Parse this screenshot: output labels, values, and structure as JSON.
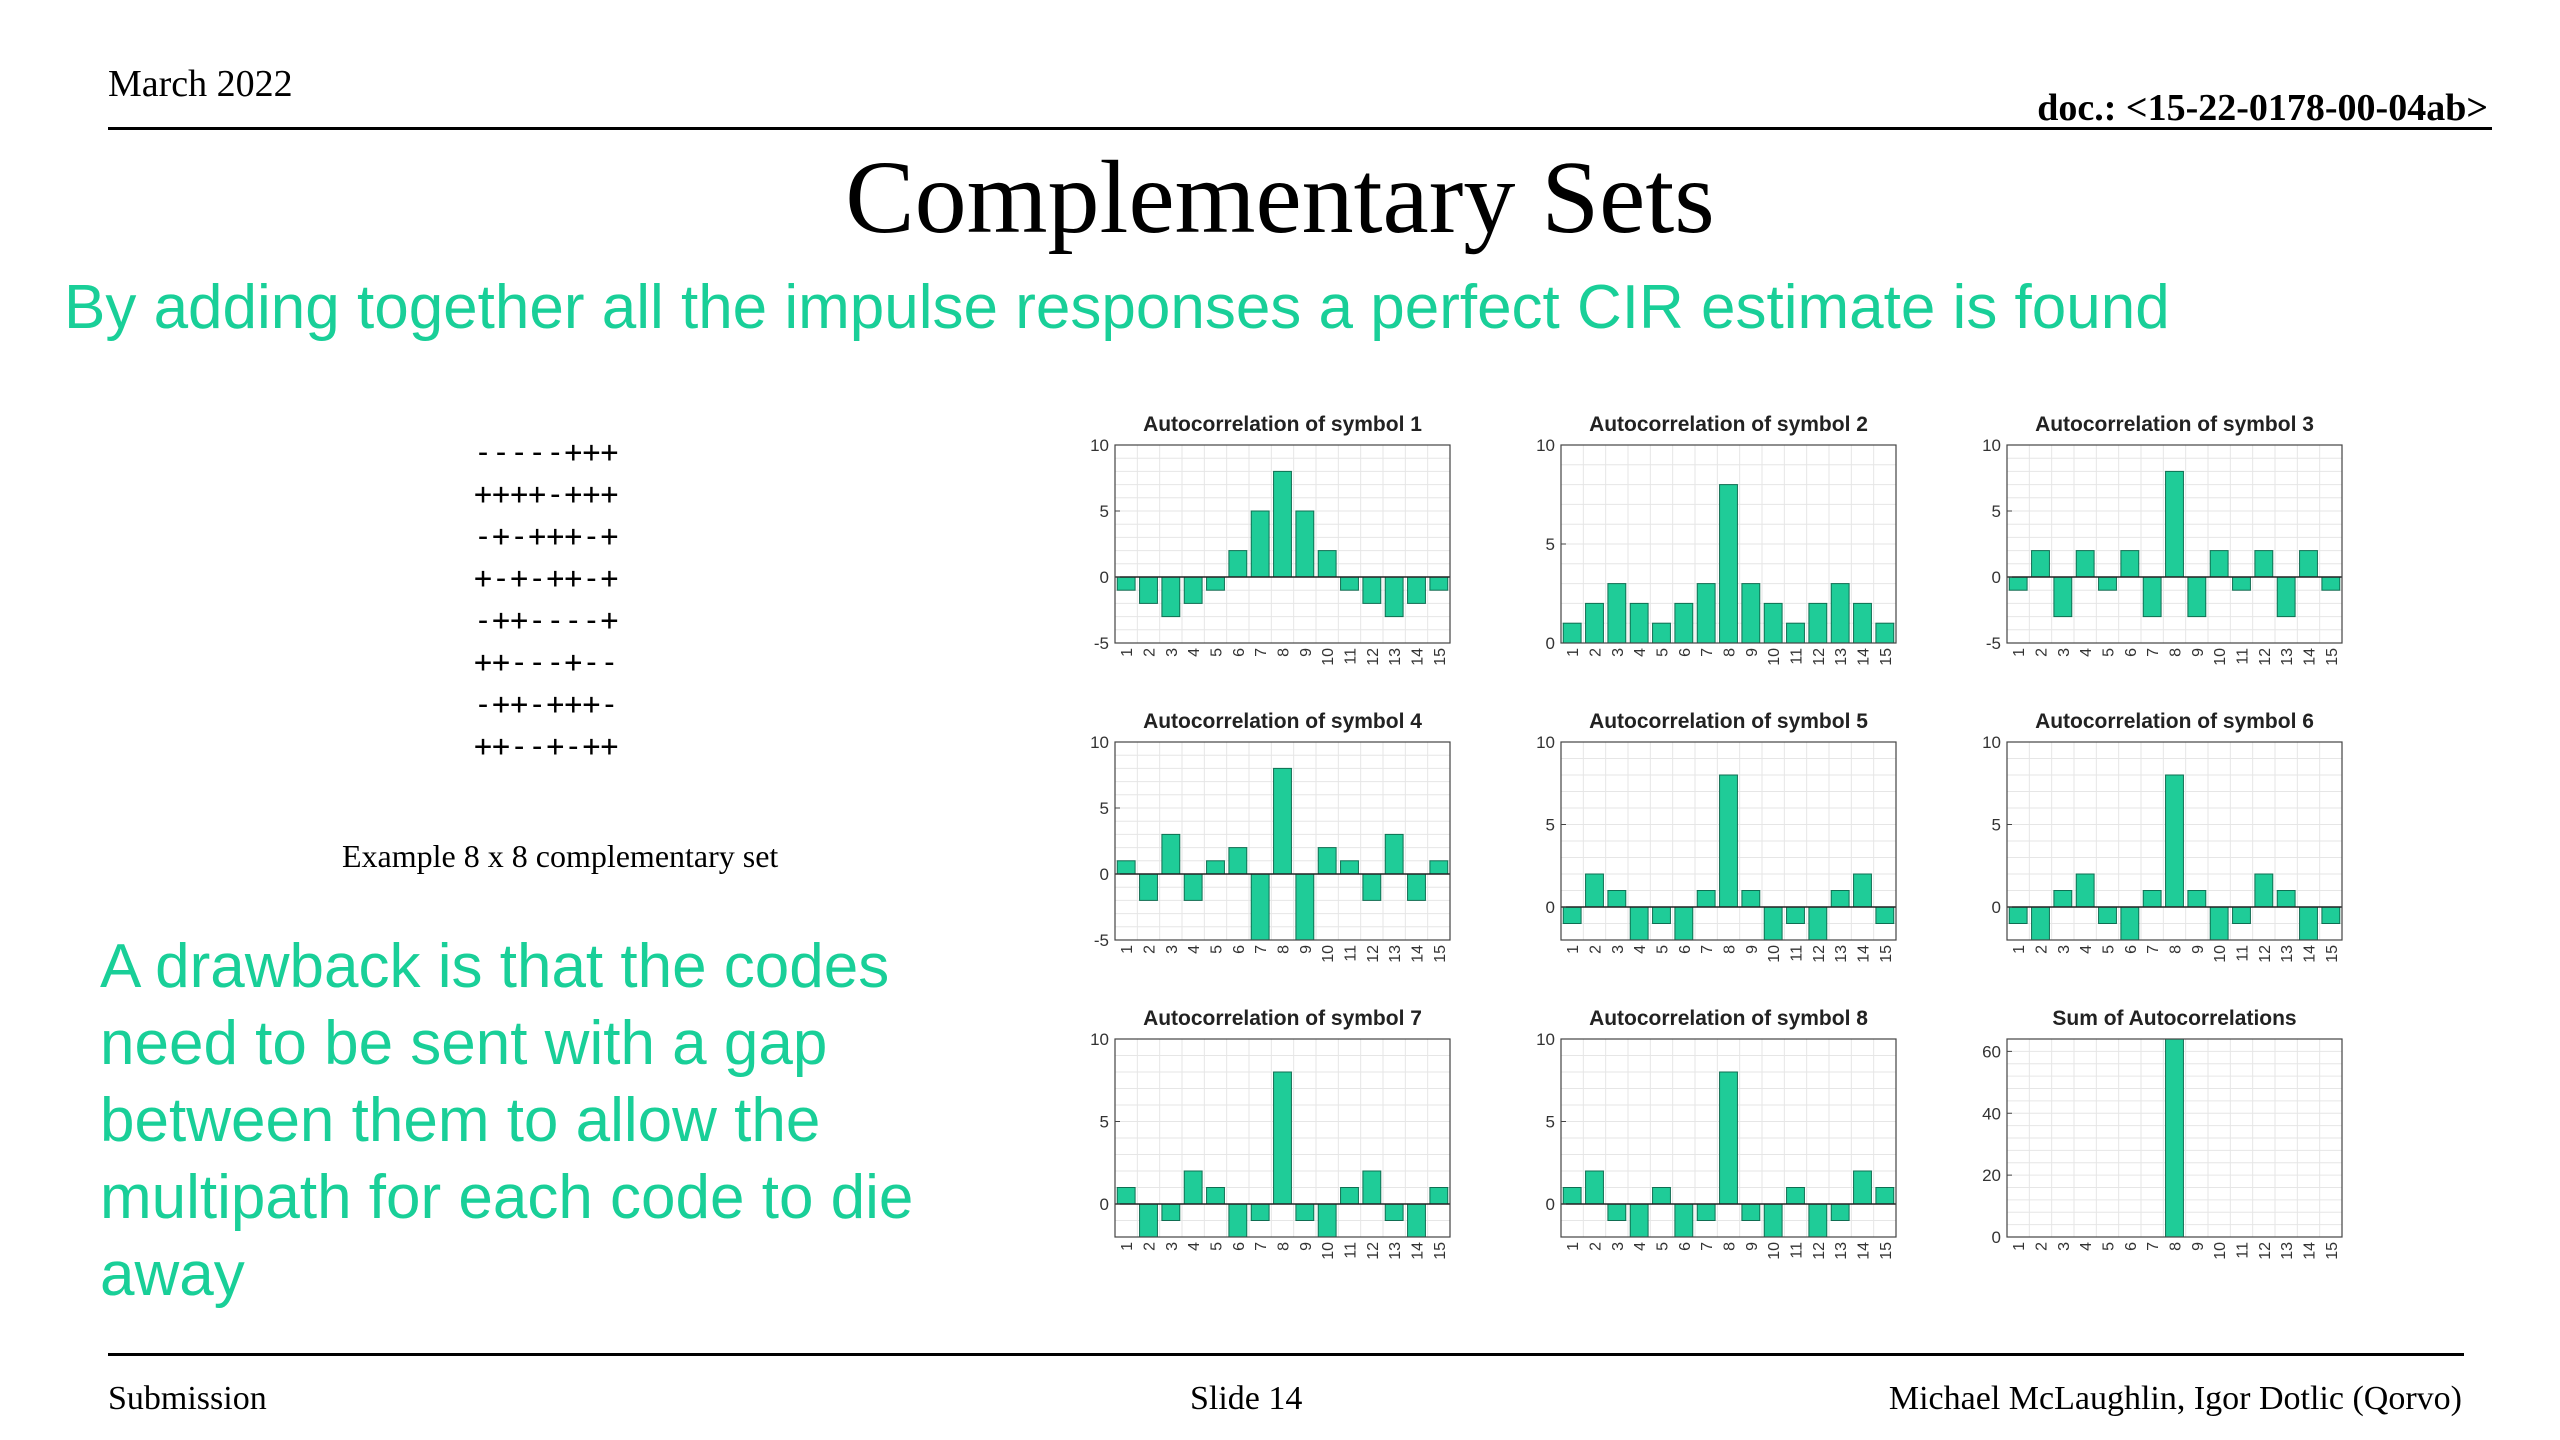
{
  "header": {
    "date": "March 2022",
    "doc_id": "doc.: <15-22-0178-00-04ab>"
  },
  "title": "Complementary Sets",
  "subtitle": "By adding together all the impulse responses a perfect CIR estimate is found",
  "codes": [
    "-----+++",
    "++++-+++",
    "-+-+++-+",
    "+-+-++-+",
    "-++----+",
    "++---+--",
    "-++-+++-",
    "++--+-++"
  ],
  "codes_caption": "Example 8 x 8 complementary set",
  "drawback_text": "A drawback is that the codes need to be sent with a gap between them to allow the multipath for each code to die away",
  "footer": {
    "left": "Submission",
    "center": "Slide 14",
    "right": "Michael McLaughlin, Igor Dotlic (Qorvo)"
  },
  "colors": {
    "accent": "#19cf98",
    "bar_fill": "#1fcc98",
    "bar_stroke": "#0f6e52"
  },
  "chart_data": [
    {
      "type": "bar",
      "title": "Autocorrelation of symbol 1",
      "categories": [
        "1",
        "2",
        "3",
        "4",
        "5",
        "6",
        "7",
        "8",
        "9",
        "10",
        "11",
        "12",
        "13",
        "14",
        "15"
      ],
      "values": [
        -1,
        -2,
        -3,
        -2,
        -1,
        2,
        5,
        8,
        5,
        2,
        -1,
        -2,
        -3,
        -2,
        -1
      ],
      "ylim": [
        -5,
        10
      ],
      "yticks": [
        -5,
        0,
        5,
        10
      ],
      "grid": true
    },
    {
      "type": "bar",
      "title": "Autocorrelation of symbol 2",
      "categories": [
        "1",
        "2",
        "3",
        "4",
        "5",
        "6",
        "7",
        "8",
        "9",
        "10",
        "11",
        "12",
        "13",
        "14",
        "15"
      ],
      "values": [
        1,
        2,
        3,
        2,
        1,
        2,
        3,
        8,
        3,
        2,
        1,
        2,
        3,
        2,
        1
      ],
      "ylim": [
        0,
        10
      ],
      "yticks": [
        0,
        5,
        10
      ],
      "grid": true
    },
    {
      "type": "bar",
      "title": "Autocorrelation of symbol 3",
      "categories": [
        "1",
        "2",
        "3",
        "4",
        "5",
        "6",
        "7",
        "8",
        "9",
        "10",
        "11",
        "12",
        "13",
        "14",
        "15"
      ],
      "values": [
        -1,
        2,
        -3,
        2,
        -1,
        2,
        -3,
        8,
        -3,
        2,
        -1,
        2,
        -3,
        2,
        -1
      ],
      "ylim": [
        -5,
        10
      ],
      "yticks": [
        -5,
        0,
        5,
        10
      ],
      "grid": true
    },
    {
      "type": "bar",
      "title": "Autocorrelation of symbol 4",
      "categories": [
        "1",
        "2",
        "3",
        "4",
        "5",
        "6",
        "7",
        "8",
        "9",
        "10",
        "11",
        "12",
        "13",
        "14",
        "15"
      ],
      "values": [
        1,
        -2,
        3,
        -2,
        1,
        2,
        -5,
        8,
        -5,
        2,
        1,
        -2,
        3,
        -2,
        1
      ],
      "ylim": [
        -5,
        10
      ],
      "yticks": [
        -5,
        0,
        5,
        10
      ],
      "grid": true
    },
    {
      "type": "bar",
      "title": "Autocorrelation of symbol 5",
      "categories": [
        "1",
        "2",
        "3",
        "4",
        "5",
        "6",
        "7",
        "8",
        "9",
        "10",
        "11",
        "12",
        "13",
        "14",
        "15"
      ],
      "values": [
        -1,
        2,
        1,
        -2,
        -1,
        -2,
        1,
        8,
        1,
        -2,
        -1,
        -2,
        1,
        2,
        -1
      ],
      "ylim": [
        -2,
        10
      ],
      "yticks": [
        0,
        5,
        10
      ],
      "grid": true
    },
    {
      "type": "bar",
      "title": "Autocorrelation of symbol 6",
      "categories": [
        "1",
        "2",
        "3",
        "4",
        "5",
        "6",
        "7",
        "8",
        "9",
        "10",
        "11",
        "12",
        "13",
        "14",
        "15"
      ],
      "values": [
        -1,
        -2,
        1,
        2,
        -1,
        -2,
        1,
        8,
        1,
        -2,
        -1,
        2,
        1,
        -2,
        -1
      ],
      "ylim": [
        -2,
        10
      ],
      "yticks": [
        0,
        5,
        10
      ],
      "grid": true
    },
    {
      "type": "bar",
      "title": "Autocorrelation of symbol 7",
      "categories": [
        "1",
        "2",
        "3",
        "4",
        "5",
        "6",
        "7",
        "8",
        "9",
        "10",
        "11",
        "12",
        "13",
        "14",
        "15"
      ],
      "values": [
        1,
        -2,
        -1,
        2,
        1,
        -2,
        -1,
        8,
        -1,
        -2,
        1,
        2,
        -1,
        -2,
        1
      ],
      "ylim": [
        -2,
        10
      ],
      "yticks": [
        0,
        5,
        10
      ],
      "grid": true
    },
    {
      "type": "bar",
      "title": "Autocorrelation of symbol 8",
      "categories": [
        "1",
        "2",
        "3",
        "4",
        "5",
        "6",
        "7",
        "8",
        "9",
        "10",
        "11",
        "12",
        "13",
        "14",
        "15"
      ],
      "values": [
        1,
        2,
        -1,
        -2,
        1,
        -2,
        -1,
        8,
        -1,
        -2,
        1,
        -2,
        -1,
        2,
        1
      ],
      "ylim": [
        -2,
        10
      ],
      "yticks": [
        0,
        5,
        10
      ],
      "grid": true
    },
    {
      "type": "bar",
      "title": "Sum of Autocorrelations",
      "categories": [
        "1",
        "2",
        "3",
        "4",
        "5",
        "6",
        "7",
        "8",
        "9",
        "10",
        "11",
        "12",
        "13",
        "14",
        "15"
      ],
      "values": [
        0,
        0,
        0,
        0,
        0,
        0,
        0,
        64,
        0,
        0,
        0,
        0,
        0,
        0,
        0
      ],
      "ylim": [
        0,
        64
      ],
      "yticks": [
        0,
        20,
        40,
        60
      ],
      "grid": true
    }
  ]
}
